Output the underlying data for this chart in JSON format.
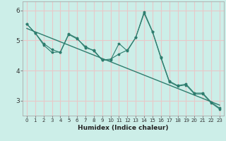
{
  "title": "",
  "xlabel": "Humidex (Indice chaleur)",
  "ylabel": "",
  "bg_color": "#cceee8",
  "grid_color": "#e8c8c8",
  "line_color": "#2e7d6e",
  "xlim": [
    -0.5,
    23.5
  ],
  "ylim": [
    2.5,
    6.3
  ],
  "yticks": [
    3,
    4,
    5,
    6
  ],
  "xticks": [
    0,
    1,
    2,
    3,
    4,
    5,
    6,
    7,
    8,
    9,
    10,
    11,
    12,
    13,
    14,
    15,
    16,
    17,
    18,
    19,
    20,
    21,
    22,
    23
  ],
  "series1_x": [
    0,
    1,
    2,
    3,
    4,
    5,
    6,
    7,
    8,
    9,
    10,
    11,
    12,
    13,
    14,
    15,
    16,
    17,
    18,
    19,
    20,
    21,
    22,
    23
  ],
  "series1_y": [
    5.55,
    5.25,
    4.9,
    4.7,
    4.6,
    5.2,
    5.05,
    4.8,
    4.65,
    4.35,
    4.35,
    4.9,
    4.65,
    5.1,
    5.95,
    5.3,
    4.45,
    3.65,
    3.5,
    3.55,
    3.25,
    3.25,
    2.95,
    2.75
  ],
  "series2_x": [
    0,
    1,
    2,
    3,
    4,
    5,
    6,
    7,
    8,
    9,
    10,
    11,
    12,
    13,
    14,
    15,
    16,
    17,
    18,
    19,
    20,
    21,
    22,
    23
  ],
  "series2_y": [
    5.55,
    5.25,
    4.85,
    4.6,
    4.62,
    5.22,
    5.08,
    4.75,
    4.68,
    4.35,
    4.38,
    4.55,
    4.68,
    5.1,
    5.9,
    5.28,
    4.42,
    3.62,
    3.48,
    3.52,
    3.22,
    3.22,
    2.92,
    2.72
  ],
  "trend_x": [
    0,
    23
  ],
  "trend_y": [
    5.4,
    2.85
  ]
}
